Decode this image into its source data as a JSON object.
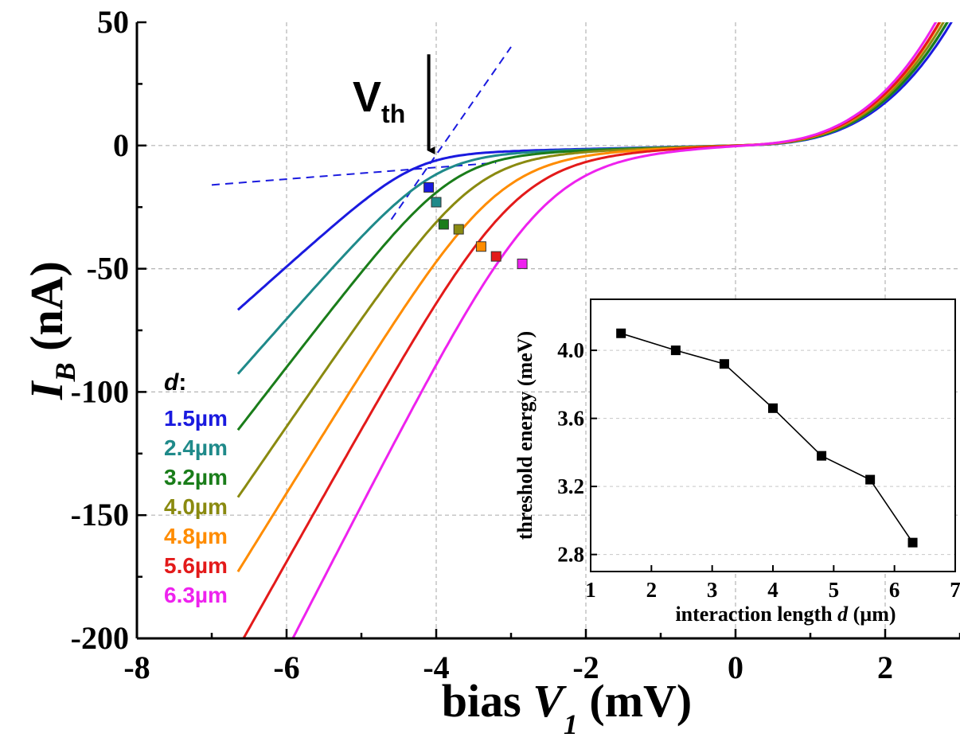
{
  "chart_data": [
    {
      "type": "line",
      "title": "",
      "xlabel_main": "bias ",
      "xlabel_var": "V",
      "xlabel_sub": "1",
      "xlabel_unit": " (mV)",
      "ylabel_var": "I",
      "ylabel_sub": "B",
      "ylabel_unit": " (nA)",
      "xlim": [
        -8,
        3
      ],
      "ylim": [
        -200,
        50
      ],
      "xticks": [
        -8,
        -6,
        -4,
        -2,
        0,
        2
      ],
      "yticks": [
        50,
        0,
        -50,
        -100,
        -150,
        -200
      ],
      "grid": true,
      "legend_title": "d",
      "legend_title_colon": ":",
      "legend_placement": "left",
      "series": [
        {
          "name": "1.5µm",
          "color": "#1a1adf",
          "params": {
            "a": 0.7,
            "b": 5.5,
            "c": 2.0,
            "v0": -4.3,
            "w": 0.35
          },
          "threshold": [
            -4.1,
            -17
          ]
        },
        {
          "name": "2.4µm",
          "color": "#1f8a8a",
          "params": {
            "a": 0.8,
            "b": 7.0,
            "c": 2.1,
            "v0": -4.05,
            "w": 0.4
          },
          "threshold": [
            -4.0,
            -23
          ]
        },
        {
          "name": "3.2µm",
          "color": "#1a7d1a",
          "params": {
            "a": 0.9,
            "b": 8.0,
            "c": 2.1,
            "v0": -3.8,
            "w": 0.42
          },
          "threshold": [
            -3.9,
            -32
          ]
        },
        {
          "name": "4.0µm",
          "color": "#8a8a10",
          "params": {
            "a": 1.0,
            "b": 9.0,
            "c": 2.2,
            "v0": -3.5,
            "w": 0.45
          },
          "threshold": [
            -3.7,
            -34
          ]
        },
        {
          "name": "4.8µm",
          "color": "#ff8c00",
          "params": {
            "a": 1.1,
            "b": 10.0,
            "c": 2.3,
            "v0": -3.2,
            "w": 0.5
          },
          "threshold": [
            -3.4,
            -41
          ]
        },
        {
          "name": "5.6µm",
          "color": "#e31a1a",
          "params": {
            "a": 1.3,
            "b": 11.0,
            "c": 2.3,
            "v0": -2.95,
            "w": 0.52
          },
          "threshold": [
            -3.2,
            -45
          ]
        },
        {
          "name": "6.3µm",
          "color": "#ee22ee",
          "params": {
            "a": 1.5,
            "b": 12.0,
            "c": 2.4,
            "v0": -2.6,
            "w": 0.55
          },
          "threshold": [
            -2.85,
            -48
          ]
        }
      ],
      "x_range_curves": [
        -6.65,
        3.0
      ],
      "construction_lines": [
        {
          "from": [
            -7.0,
            -16
          ],
          "to": [
            -3.2,
            -7
          ]
        },
        {
          "from": [
            -4.6,
            -30
          ],
          "to": [
            -3.0,
            40
          ]
        }
      ],
      "annotation": {
        "text": "V",
        "sub": "th",
        "arrow_x": -4.1,
        "arrow_from_y": 37,
        "arrow_to_y": -2
      }
    },
    {
      "type": "line",
      "title": "",
      "xlabel_main": "interaction length ",
      "xlabel_var": "d",
      "xlabel_unit": " (µm)",
      "ylabel": "threshold energy (meV)",
      "xlim": [
        1,
        7
      ],
      "ylim": [
        2.7,
        4.3
      ],
      "xticks": [
        1,
        2,
        3,
        4,
        5,
        6,
        7
      ],
      "yticks": [
        2.8,
        3.2,
        3.6,
        4.0
      ],
      "ytick_labels": [
        "2.8",
        "3.2",
        "3.6",
        "4.0"
      ],
      "grid": true,
      "x": [
        1.5,
        2.4,
        3.2,
        4.0,
        4.8,
        5.6,
        6.3
      ],
      "y": [
        4.1,
        4.0,
        3.92,
        3.66,
        3.38,
        3.24,
        2.87
      ]
    }
  ]
}
